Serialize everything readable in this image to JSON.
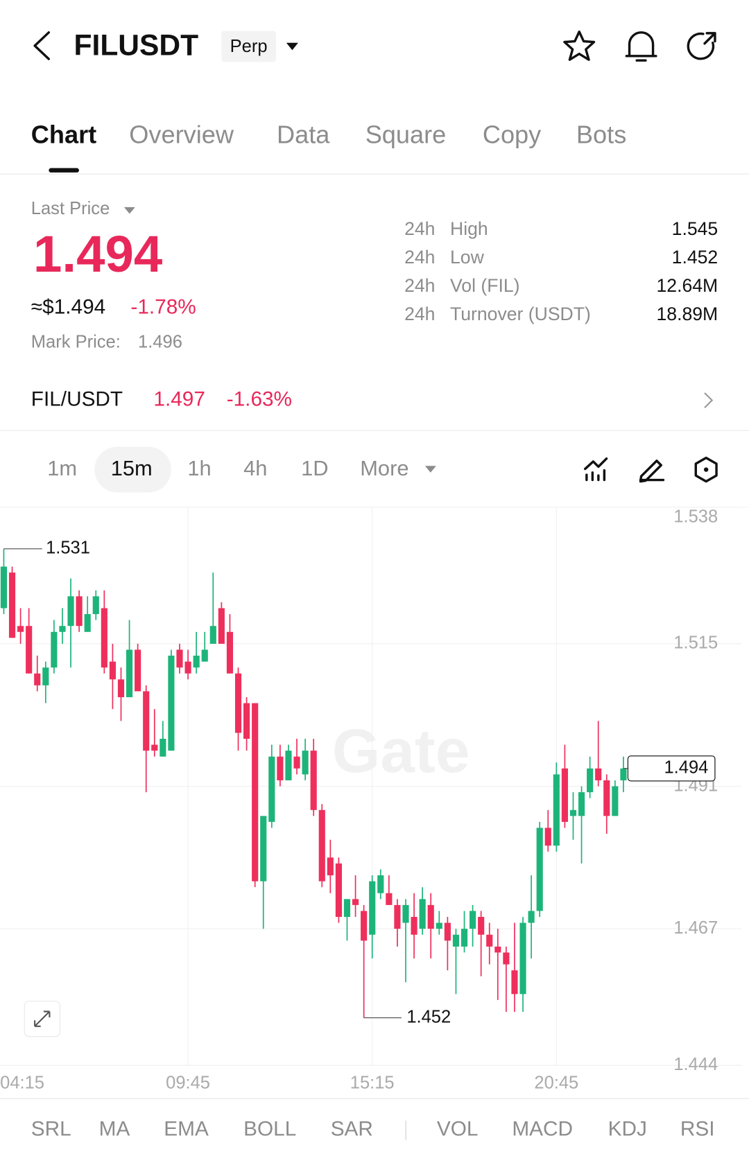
{
  "header": {
    "symbol": "FILUSDT",
    "badge": "Perp"
  },
  "tabs": [
    "Chart",
    "Overview",
    "Data",
    "Square",
    "Copy",
    "Bots"
  ],
  "price": {
    "label": "Last Price",
    "last": "1.494",
    "usd": "≈$1.494",
    "change": "-1.78%",
    "mark_label": "Mark Price:",
    "mark": "1.496"
  },
  "stats": [
    {
      "period": "24h",
      "label": "High",
      "value": "1.545"
    },
    {
      "period": "24h",
      "label": "Low",
      "value": "1.452"
    },
    {
      "period": "24h",
      "label": "Vol (FIL)",
      "value": "12.64M"
    },
    {
      "period": "24h",
      "label": "Turnover (USDT)",
      "value": "18.89M"
    }
  ],
  "spot": {
    "pair": "FIL/USDT",
    "price": "1.497",
    "change": "-1.63%"
  },
  "intervals": [
    "1m",
    "15m",
    "1h",
    "4h",
    "1D",
    "More"
  ],
  "indicators": [
    "SRL",
    "MA",
    "EMA",
    "BOLL",
    "SAR",
    "VOL",
    "MACD",
    "KDJ",
    "RSI"
  ],
  "chart_data": {
    "type": "candlestick",
    "watermark": "Gate",
    "categories": [
      "04:15",
      null,
      null,
      null,
      null,
      null,
      null,
      null,
      null,
      null,
      null,
      null,
      null,
      null,
      null,
      null,
      null,
      null,
      null,
      null,
      null,
      null,
      "09:45",
      null,
      null,
      null,
      null,
      null,
      null,
      null,
      null,
      null,
      null,
      null,
      null,
      null,
      null,
      null,
      null,
      null,
      null,
      null,
      null,
      null,
      "15:15",
      null,
      null,
      null,
      null,
      null,
      null,
      null,
      null,
      null,
      null,
      null,
      null,
      null,
      null,
      null,
      null,
      null,
      null,
      null,
      null,
      null,
      "20:45",
      null,
      null,
      null,
      null,
      null,
      null,
      null,
      null
    ],
    "open": [
      1.521,
      1.527,
      1.518,
      1.518,
      1.51,
      1.508,
      1.511,
      1.517,
      1.518,
      1.523,
      1.517,
      1.52,
      1.521,
      1.512,
      1.509,
      1.506,
      1.514,
      1.507,
      1.498,
      1.496,
      1.497,
      1.514,
      1.512,
      1.511,
      1.512,
      1.515,
      1.521,
      1.517,
      1.51,
      1.505,
      1.505,
      1.475,
      1.485,
      1.496,
      1.492,
      1.496,
      1.493,
      1.497,
      1.487,
      1.479,
      1.478,
      1.469,
      1.472,
      1.47,
      1.466,
      1.473,
      1.473,
      1.471,
      1.468,
      1.469,
      1.467,
      1.471,
      1.467,
      1.468,
      1.464,
      1.464,
      1.467,
      1.469,
      1.466,
      1.464,
      1.463,
      1.46,
      1.456,
      1.468,
      1.47,
      1.484,
      1.481,
      1.494,
      1.486,
      1.486,
      1.49,
      1.494,
      1.492,
      1.486,
      1.492
    ],
    "high": [
      1.531,
      1.528,
      1.521,
      1.521,
      1.513,
      1.512,
      1.519,
      1.521,
      1.526,
      1.524,
      1.523,
      1.524,
      1.524,
      1.515,
      1.511,
      1.519,
      1.515,
      1.508,
      1.504,
      1.502,
      1.514,
      1.515,
      1.514,
      1.517,
      1.517,
      1.527,
      1.522,
      1.52,
      1.511,
      1.506,
      1.505,
      1.486,
      1.498,
      1.498,
      1.498,
      1.499,
      1.499,
      1.499,
      1.488,
      1.482,
      1.479,
      1.472,
      1.476,
      1.471,
      1.476,
      1.477,
      1.476,
      1.472,
      1.472,
      1.473,
      1.474,
      1.473,
      1.47,
      1.469,
      1.467,
      1.47,
      1.471,
      1.47,
      1.468,
      1.467,
      1.464,
      1.468,
      1.469,
      1.476,
      1.485,
      1.487,
      1.495,
      1.498,
      1.49,
      1.491,
      1.496,
      1.502,
      1.493,
      1.492,
      1.496
    ],
    "low": [
      1.52,
      1.516,
      1.515,
      1.51,
      1.507,
      1.505,
      1.51,
      1.515,
      1.511,
      1.517,
      1.517,
      1.519,
      1.51,
      1.504,
      1.502,
      1.506,
      1.507,
      1.49,
      1.496,
      1.496,
      1.497,
      1.51,
      1.509,
      1.51,
      1.512,
      1.515,
      1.515,
      1.51,
      1.497,
      1.497,
      1.474,
      1.467,
      1.484,
      1.491,
      1.492,
      1.493,
      1.492,
      1.486,
      1.474,
      1.473,
      1.468,
      1.465,
      1.469,
      1.452,
      1.462,
      1.472,
      1.471,
      1.464,
      1.458,
      1.462,
      1.466,
      1.462,
      1.466,
      1.46,
      1.456,
      1.463,
      1.464,
      1.459,
      1.461,
      1.455,
      1.453,
      1.453,
      1.453,
      1.462,
      1.469,
      1.48,
      1.48,
      1.484,
      1.482,
      1.478,
      1.489,
      1.491,
      1.483,
      1.486,
      1.49
    ],
    "close": [
      1.528,
      1.516,
      1.517,
      1.51,
      1.508,
      1.511,
      1.517,
      1.518,
      1.523,
      1.518,
      1.52,
      1.523,
      1.511,
      1.509,
      1.506,
      1.514,
      1.507,
      1.497,
      1.497,
      1.499,
      1.513,
      1.511,
      1.51,
      1.513,
      1.514,
      1.518,
      1.515,
      1.51,
      1.5,
      1.499,
      1.475,
      1.486,
      1.496,
      1.492,
      1.497,
      1.494,
      1.497,
      1.487,
      1.475,
      1.476,
      1.469,
      1.472,
      1.471,
      1.465,
      1.475,
      1.476,
      1.471,
      1.467,
      1.471,
      1.466,
      1.472,
      1.467,
      1.468,
      1.465,
      1.466,
      1.467,
      1.47,
      1.466,
      1.464,
      1.463,
      1.461,
      1.456,
      1.468,
      1.47,
      1.484,
      1.481,
      1.493,
      1.485,
      1.487,
      1.49,
      1.494,
      1.492,
      1.486,
      1.491,
      1.494
    ],
    "up_color": "#1db47a",
    "down_color": "#ee2f5c",
    "ylim": [
      1.444,
      1.538
    ],
    "yticks": [
      1.444,
      1.467,
      1.491,
      1.515,
      1.538
    ],
    "grid": true,
    "max_marker": 1.531,
    "min_marker": 1.452,
    "last_price_marker": 1.494
  }
}
